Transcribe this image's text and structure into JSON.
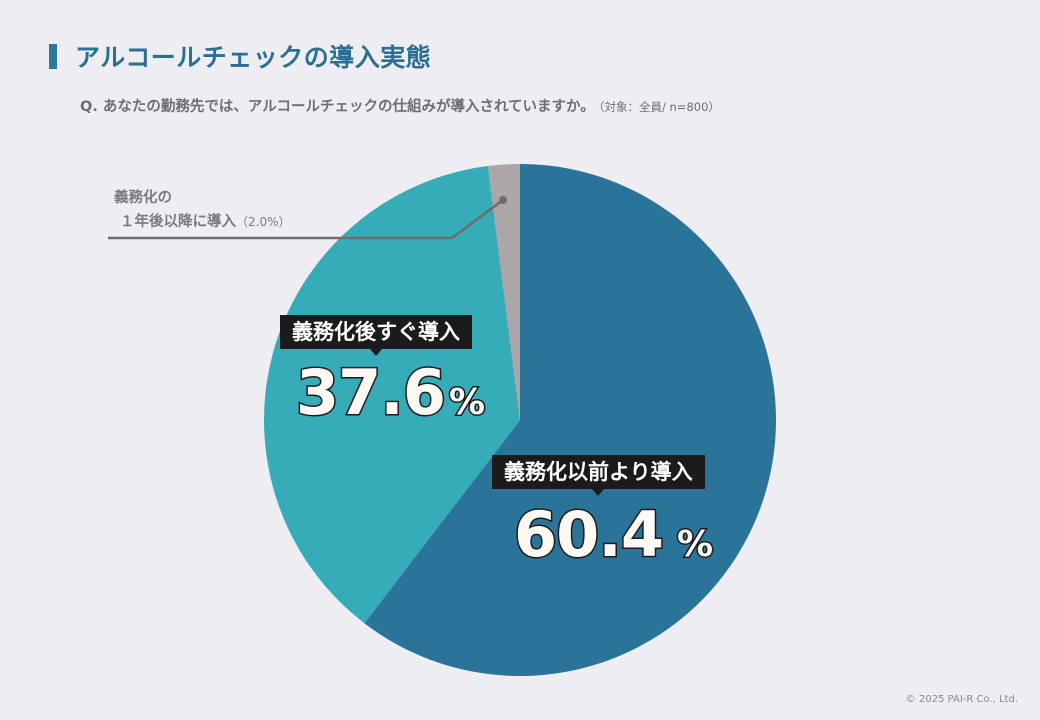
{
  "header": {
    "title": "アルコールチェックの導入実態",
    "question": "Q. あなたの勤務先では、アルコールチェックの仕組みが導入されていますか。",
    "target": "（対象：全員/ n=800）"
  },
  "labels": {
    "before": {
      "name": "義務化以前より導入",
      "value": "60.4",
      "unit": "%"
    },
    "immediately": {
      "name": "義務化後すぐ導入",
      "value": "37.6",
      "unit": "%"
    },
    "after_year_line1": "義務化の",
    "after_year_line2": "１年後以降に導入",
    "after_year_pct": "（2.0%）"
  },
  "colors": {
    "before": "#2b7499",
    "immediately": "#35acb8",
    "after_year": "#aca6a9",
    "title": "#2b6f93",
    "background": "#eeedf1"
  },
  "footer": {
    "copyright": "© 2025 PAI-R Co., Ltd."
  },
  "chart_data": {
    "type": "pie",
    "title": "アルコールチェックの導入実態",
    "subtitle": "Q. あなたの勤務先では、アルコールチェックの仕組みが導入されていますか。（対象：全員/ n=800）",
    "categories": [
      "義務化以前より導入",
      "義務化後すぐ導入",
      "義務化の１年後以降に導入"
    ],
    "values": [
      60.4,
      37.6,
      2.0
    ],
    "unit": "%",
    "n": 800,
    "start_angle": "12 o'clock, clockwise",
    "legend": "none (direct labels)"
  }
}
